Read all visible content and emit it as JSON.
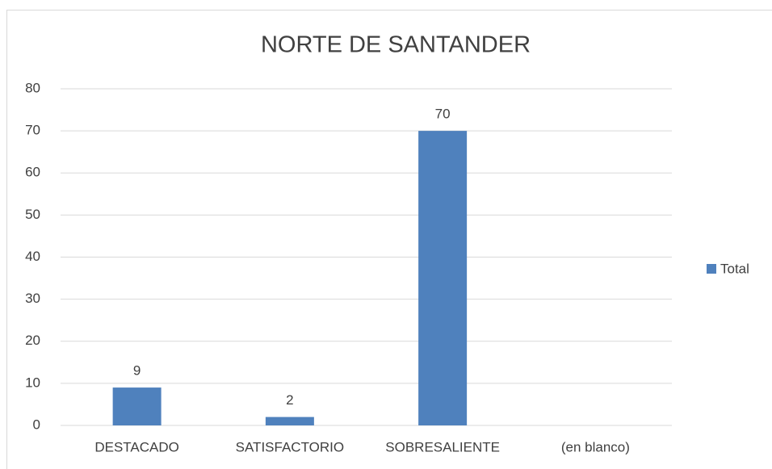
{
  "chart_data": {
    "type": "bar",
    "title": "NORTE DE SANTANDER",
    "categories": [
      "DESTACADO",
      "SATISFACTORIO",
      "SOBRESALIENTE",
      "(en blanco)"
    ],
    "series": [
      {
        "name": "Total",
        "color": "#4f81bd",
        "values": [
          9,
          2,
          70,
          null
        ]
      }
    ],
    "ylim": [
      0,
      80
    ],
    "yticks": [
      0,
      10,
      20,
      30,
      40,
      50,
      60,
      70,
      80
    ],
    "grid": true,
    "data_labels": true,
    "legend": "right"
  }
}
